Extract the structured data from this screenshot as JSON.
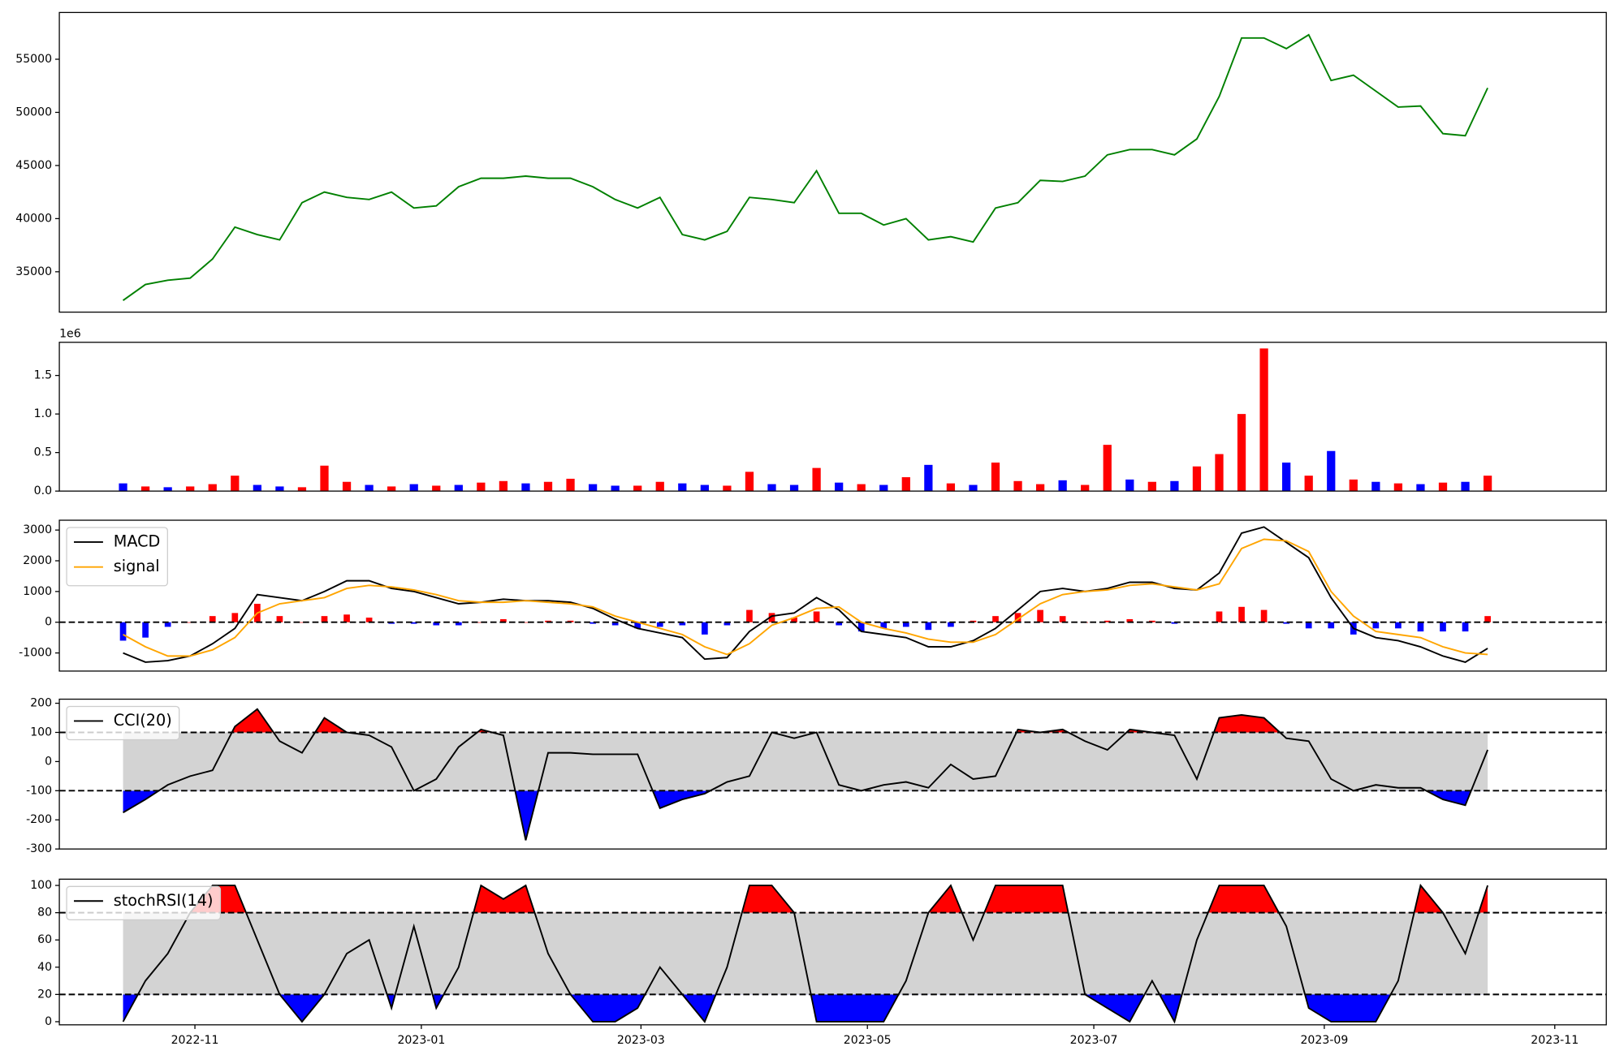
{
  "chart_data": [
    {
      "type": "line",
      "xlim": [
        2022.733,
        2023.874
      ],
      "ylim": [
        31200,
        59400
      ],
      "yticks": [
        35000,
        40000,
        45000,
        50000,
        55000
      ],
      "x": [
        2022.78,
        2022.7965,
        2022.813,
        2022.8295,
        2022.846,
        2022.8625,
        2022.879,
        2022.8955,
        2022.912,
        2022.9285,
        2022.945,
        2022.9615,
        2022.978,
        2022.9945,
        2023.011,
        2023.0275,
        2023.044,
        2023.0605,
        2023.077,
        2023.0935,
        2023.11,
        2023.1265,
        2023.143,
        2023.1595,
        2023.176,
        2023.1925,
        2023.209,
        2023.2255,
        2023.242,
        2023.2585,
        2023.275,
        2023.2915,
        2023.308,
        2023.3245,
        2023.341,
        2023.3575,
        2023.374,
        2023.3905,
        2023.407,
        2023.4235,
        2023.44,
        2023.4565,
        2023.473,
        2023.4895,
        2023.506,
        2023.5225,
        2023.539,
        2023.5555,
        2023.572,
        2023.5885,
        2023.605,
        2023.6215,
        2023.638,
        2023.6545,
        2023.671,
        2023.6875,
        2023.704,
        2023.7205,
        2023.737,
        2023.7535,
        2023.77,
        2023.7865
      ],
      "series": [
        {
          "color": "green",
          "values": [
            32300,
            33800,
            34200,
            34400,
            36200,
            39200,
            38500,
            38000,
            41500,
            42500,
            42000,
            41800,
            42500,
            41000,
            41200,
            43000,
            43800,
            43800,
            44000,
            43800,
            43800,
            43000,
            41800,
            41000,
            42000,
            38500,
            38000,
            38800,
            42000,
            41800,
            41500,
            44500,
            40500,
            40500,
            39400,
            40000,
            38000,
            38300,
            37800,
            41000,
            41500,
            43600,
            43500,
            44000,
            46000,
            46500,
            46500,
            46000,
            47500,
            51500,
            57000,
            57000,
            56000,
            57300,
            53000,
            53500,
            52000,
            50500,
            50600,
            48000,
            47800,
            52300
          ]
        }
      ]
    },
    {
      "type": "bar",
      "xlim": [
        2022.733,
        2023.874
      ],
      "ylim": [
        0,
        1930000
      ],
      "offset_label": "1e6",
      "yticks": [
        {
          "value": 0,
          "label": "0.0"
        },
        {
          "value": 500000,
          "label": "0.5"
        },
        {
          "value": 1000000,
          "label": "1.0"
        },
        {
          "value": 1500000,
          "label": "1.5"
        }
      ],
      "x": [
        2022.78,
        2022.7965,
        2022.813,
        2022.8295,
        2022.846,
        2022.8625,
        2022.879,
        2022.8955,
        2022.912,
        2022.9285,
        2022.945,
        2022.9615,
        2022.978,
        2022.9945,
        2023.011,
        2023.0275,
        2023.044,
        2023.0605,
        2023.077,
        2023.0935,
        2023.11,
        2023.1265,
        2023.143,
        2023.1595,
        2023.176,
        2023.1925,
        2023.209,
        2023.2255,
        2023.242,
        2023.2585,
        2023.275,
        2023.2915,
        2023.308,
        2023.3245,
        2023.341,
        2023.3575,
        2023.374,
        2023.3905,
        2023.407,
        2023.4235,
        2023.44,
        2023.4565,
        2023.473,
        2023.4895,
        2023.506,
        2023.5225,
        2023.539,
        2023.5555,
        2023.572,
        2023.5885,
        2023.605,
        2023.6215,
        2023.638,
        2023.6545,
        2023.671,
        2023.6875,
        2023.704,
        2023.7205,
        2023.737,
        2023.7535,
        2023.77,
        2023.7865
      ],
      "values": [
        100000,
        60000,
        50000,
        60000,
        90000,
        200000,
        80000,
        60000,
        50000,
        330000,
        120000,
        80000,
        60000,
        90000,
        70000,
        80000,
        110000,
        130000,
        100000,
        120000,
        160000,
        90000,
        70000,
        70000,
        120000,
        100000,
        80000,
        70000,
        250000,
        90000,
        80000,
        300000,
        110000,
        90000,
        80000,
        180000,
        340000,
        100000,
        80000,
        370000,
        130000,
        90000,
        140000,
        80000,
        600000,
        150000,
        120000,
        130000,
        320000,
        480000,
        1000000,
        1850000,
        370000,
        200000,
        520000,
        150000,
        120000,
        100000,
        90000,
        110000,
        120000,
        200000
      ],
      "colors": [
        "blue",
        "red",
        "blue",
        "red",
        "red",
        "red",
        "blue",
        "blue",
        "red",
        "red",
        "red",
        "blue",
        "red",
        "blue",
        "red",
        "blue",
        "red",
        "red",
        "blue",
        "red",
        "red",
        "blue",
        "blue",
        "red",
        "red",
        "blue",
        "blue",
        "red",
        "red",
        "blue",
        "blue",
        "red",
        "blue",
        "red",
        "blue",
        "red",
        "blue",
        "red",
        "blue",
        "red",
        "red",
        "red",
        "blue",
        "red",
        "red",
        "blue",
        "red",
        "blue",
        "red",
        "red",
        "red",
        "red",
        "blue",
        "red",
        "blue",
        "red",
        "blue",
        "red",
        "blue",
        "red",
        "blue",
        "red"
      ]
    },
    {
      "type": "line",
      "xlim": [
        2022.733,
        2023.874
      ],
      "ylim": [
        -1590,
        3320
      ],
      "yticks": [
        -1000,
        0,
        1000,
        2000,
        3000
      ],
      "hlines": [
        0
      ],
      "legend": "upper left",
      "x": [
        2022.78,
        2022.7965,
        2022.813,
        2022.8295,
        2022.846,
        2022.8625,
        2022.879,
        2022.8955,
        2022.912,
        2022.9285,
        2022.945,
        2022.9615,
        2022.978,
        2022.9945,
        2023.011,
        2023.0275,
        2023.044,
        2023.0605,
        2023.077,
        2023.0935,
        2023.11,
        2023.1265,
        2023.143,
        2023.1595,
        2023.176,
        2023.1925,
        2023.209,
        2023.2255,
        2023.242,
        2023.2585,
        2023.275,
        2023.2915,
        2023.308,
        2023.3245,
        2023.341,
        2023.3575,
        2023.374,
        2023.3905,
        2023.407,
        2023.4235,
        2023.44,
        2023.4565,
        2023.473,
        2023.4895,
        2023.506,
        2023.5225,
        2023.539,
        2023.5555,
        2023.572,
        2023.5885,
        2023.605,
        2023.6215,
        2023.638,
        2023.6545,
        2023.671,
        2023.6875,
        2023.704,
        2023.7205,
        2023.737,
        2023.7535,
        2023.77,
        2023.7865
      ],
      "histogram": {
        "up_color": "red",
        "down_color": "blue",
        "values": [
          -600,
          -500,
          -150,
          0,
          200,
          300,
          600,
          200,
          0,
          200,
          250,
          150,
          -50,
          -50,
          -100,
          -100,
          0,
          100,
          0,
          50,
          50,
          -50,
          -100,
          -200,
          -150,
          -100,
          -400,
          -100,
          400,
          300,
          150,
          350,
          -100,
          -300,
          -200,
          -150,
          -250,
          -150,
          50,
          200,
          300,
          400,
          200,
          0,
          50,
          100,
          50,
          -50,
          0,
          350,
          500,
          400,
          -50,
          -200,
          -200,
          -400,
          -200,
          -200,
          -300,
          -300,
          -300,
          200
        ]
      },
      "series": [
        {
          "name": "MACD",
          "color": "black",
          "values": [
            -1000,
            -1300,
            -1250,
            -1100,
            -700,
            -200,
            900,
            800,
            700,
            1000,
            1350,
            1350,
            1100,
            1000,
            800,
            600,
            650,
            750,
            700,
            700,
            650,
            450,
            100,
            -200,
            -350,
            -500,
            -1200,
            -1150,
            -300,
            200,
            300,
            800,
            400,
            -300,
            -400,
            -500,
            -800,
            -800,
            -600,
            -200,
            400,
            1000,
            1100,
            1000,
            1100,
            1300,
            1300,
            1100,
            1050,
            1600,
            2900,
            3100,
            2600,
            2100,
            800,
            -200,
            -500,
            -600,
            -800,
            -1100,
            -1300,
            -850
          ]
        },
        {
          "name": "signal",
          "color": "orange",
          "values": [
            -400,
            -800,
            -1100,
            -1100,
            -900,
            -500,
            300,
            600,
            700,
            800,
            1100,
            1200,
            1150,
            1050,
            900,
            700,
            650,
            650,
            700,
            650,
            600,
            500,
            200,
            0,
            -200,
            -400,
            -800,
            -1050,
            -700,
            -100,
            150,
            450,
            500,
            0,
            -200,
            -350,
            -550,
            -650,
            -650,
            -400,
            100,
            600,
            900,
            1000,
            1050,
            1200,
            1250,
            1150,
            1050,
            1250,
            2400,
            2700,
            2650,
            2300,
            1000,
            200,
            -300,
            -400,
            -500,
            -800,
            -1000,
            -1050
          ]
        }
      ]
    },
    {
      "type": "line",
      "xlim": [
        2022.733,
        2023.874
      ],
      "ylim": [
        -300,
        214
      ],
      "yticks": [
        -300,
        -200,
        -100,
        0,
        100,
        200
      ],
      "hlines": [
        100,
        -100
      ],
      "legend": "upper left",
      "band_color": "lightgray",
      "above_color": "red",
      "below_color": "blue",
      "x": [
        2022.78,
        2022.7965,
        2022.813,
        2022.8295,
        2022.846,
        2022.8625,
        2022.879,
        2022.8955,
        2022.912,
        2022.9285,
        2022.945,
        2022.9615,
        2022.978,
        2022.9945,
        2023.011,
        2023.0275,
        2023.044,
        2023.0605,
        2023.077,
        2023.0935,
        2023.11,
        2023.1265,
        2023.143,
        2023.1595,
        2023.176,
        2023.1925,
        2023.209,
        2023.2255,
        2023.242,
        2023.2585,
        2023.275,
        2023.2915,
        2023.308,
        2023.3245,
        2023.341,
        2023.3575,
        2023.374,
        2023.3905,
        2023.407,
        2023.4235,
        2023.44,
        2023.4565,
        2023.473,
        2023.4895,
        2023.506,
        2023.5225,
        2023.539,
        2023.5555,
        2023.572,
        2023.5885,
        2023.605,
        2023.6215,
        2023.638,
        2023.6545,
        2023.671,
        2023.6875,
        2023.704,
        2023.7205,
        2023.737,
        2023.7535,
        2023.77,
        2023.7865
      ],
      "series": [
        {
          "name": "CCI(20)",
          "color": "black",
          "values": [
            -175,
            -130,
            -80,
            -50,
            -30,
            120,
            180,
            70,
            30,
            150,
            100,
            90,
            50,
            -100,
            -60,
            50,
            110,
            90,
            -270,
            30,
            30,
            25,
            25,
            25,
            -160,
            -130,
            -110,
            -70,
            -50,
            100,
            80,
            100,
            -80,
            -100,
            -80,
            -70,
            -90,
            -10,
            -60,
            -50,
            110,
            100,
            110,
            70,
            40,
            110,
            100,
            90,
            -60,
            150,
            160,
            150,
            80,
            70,
            -60,
            -100,
            -80,
            -90,
            -90,
            -130,
            -150,
            40
          ]
        }
      ]
    },
    {
      "type": "line",
      "xlim": [
        2022.733,
        2023.874
      ],
      "ylim": [
        -2.3,
        104.6
      ],
      "yticks": [
        0,
        20,
        40,
        60,
        80,
        100
      ],
      "hlines": [
        80,
        20
      ],
      "legend": "upper left",
      "band_color": "lightgray",
      "above_color": "red",
      "below_color": "blue",
      "xticks": [
        {
          "value": 2022.833,
          "label": "2022-11"
        },
        {
          "value": 2023.0,
          "label": "2023-01"
        },
        {
          "value": 2023.162,
          "label": "2023-03"
        },
        {
          "value": 2023.329,
          "label": "2023-05"
        },
        {
          "value": 2023.496,
          "label": "2023-07"
        },
        {
          "value": 2023.666,
          "label": "2023-09"
        },
        {
          "value": 2023.836,
          "label": "2023-11"
        }
      ],
      "x": [
        2022.78,
        2022.7965,
        2022.813,
        2022.8295,
        2022.846,
        2022.8625,
        2022.879,
        2022.8955,
        2022.912,
        2022.9285,
        2022.945,
        2022.9615,
        2022.978,
        2022.9945,
        2023.011,
        2023.0275,
        2023.044,
        2023.0605,
        2023.077,
        2023.0935,
        2023.11,
        2023.1265,
        2023.143,
        2023.1595,
        2023.176,
        2023.1925,
        2023.209,
        2023.2255,
        2023.242,
        2023.2585,
        2023.275,
        2023.2915,
        2023.308,
        2023.3245,
        2023.341,
        2023.3575,
        2023.374,
        2023.3905,
        2023.407,
        2023.4235,
        2023.44,
        2023.4565,
        2023.473,
        2023.4895,
        2023.506,
        2023.5225,
        2023.539,
        2023.5555,
        2023.572,
        2023.5885,
        2023.605,
        2023.6215,
        2023.638,
        2023.6545,
        2023.671,
        2023.6875,
        2023.704,
        2023.7205,
        2023.737,
        2023.7535,
        2023.77,
        2023.7865
      ],
      "series": [
        {
          "name": "stochRSI(14)",
          "color": "black",
          "values": [
            0,
            30,
            50,
            80,
            100,
            100,
            60,
            20,
            0,
            20,
            50,
            60,
            10,
            70,
            10,
            40,
            100,
            90,
            100,
            50,
            20,
            0,
            0,
            10,
            40,
            20,
            0,
            40,
            100,
            100,
            80,
            0,
            0,
            0,
            0,
            30,
            80,
            100,
            60,
            100,
            100,
            100,
            100,
            20,
            10,
            0,
            30,
            0,
            60,
            100,
            100,
            100,
            70,
            10,
            0,
            0,
            0,
            30,
            100,
            80,
            50,
            100
          ]
        }
      ]
    }
  ]
}
